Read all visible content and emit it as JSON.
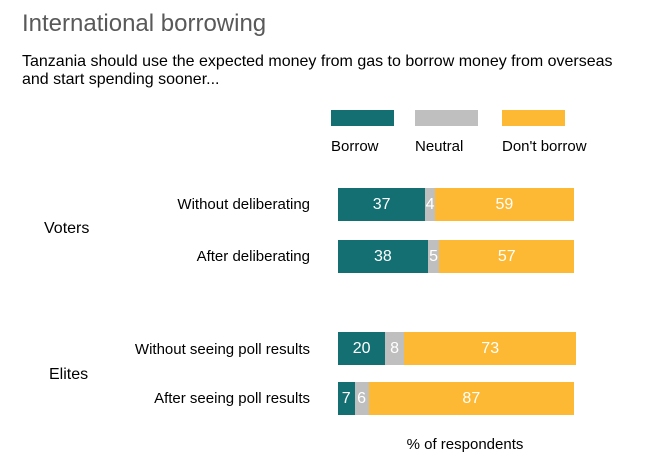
{
  "chart_data": {
    "type": "bar",
    "orientation": "horizontal",
    "stacked": true,
    "title": "International borrowing",
    "subtitle": "Tanzania should use the expected money from gas to borrow money from overseas and start spending sooner...",
    "xlabel": "% of respondents",
    "legend_position": "top",
    "series": [
      {
        "name": "Borrow",
        "color": "#136f72"
      },
      {
        "name": "Neutral",
        "color": "#bfbfbf"
      },
      {
        "name": "Don't borrow",
        "color": "#fdb933"
      }
    ],
    "groups": [
      {
        "label": "Voters",
        "rows": [
          {
            "category": "Without deliberating",
            "values": [
              37,
              4,
              59
            ]
          },
          {
            "category": "After deliberating",
            "values": [
              38,
              5,
              57
            ]
          }
        ]
      },
      {
        "label": "Elites",
        "rows": [
          {
            "category": "Without seeing poll results",
            "values": [
              20,
              8,
              73
            ]
          },
          {
            "category": "After seeing poll results",
            "values": [
              7,
              6,
              87
            ]
          }
        ]
      }
    ]
  }
}
